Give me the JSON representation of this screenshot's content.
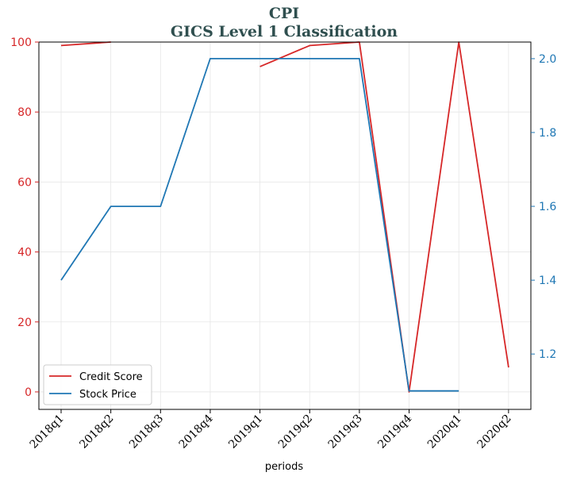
{
  "chart_data": {
    "type": "line",
    "title": "CPI",
    "subtitle": "GICS Level 1 Classification",
    "xlabel": "periods",
    "categories": [
      "2018q1",
      "2018q2",
      "2018q3",
      "2018q4",
      "2019q1",
      "2019q2",
      "2019q3",
      "2019q4",
      "2020q1",
      "2020q2"
    ],
    "series": [
      {
        "name": "Credit Score",
        "axis": "left",
        "color": "#d62728",
        "values": [
          99,
          100,
          null,
          null,
          93,
          99,
          100,
          0,
          100,
          7
        ]
      },
      {
        "name": "Stock Price",
        "axis": "right",
        "color": "#1f77b4",
        "values": [
          1.4,
          1.6,
          1.6,
          2.0,
          2.0,
          2.0,
          2.0,
          1.1,
          1.1,
          null
        ]
      }
    ],
    "y_left": {
      "range": [
        -5,
        100
      ],
      "ticks": [
        0,
        20,
        40,
        60,
        80,
        100
      ],
      "color": "#d62728"
    },
    "y_right": {
      "range": [
        1.05,
        2.045
      ],
      "ticks": [
        "1.2",
        "1.4",
        "1.6",
        "1.8",
        "2.0"
      ],
      "color": "#1f77b4"
    },
    "grid": true,
    "legend": {
      "position": "lower-left"
    }
  }
}
